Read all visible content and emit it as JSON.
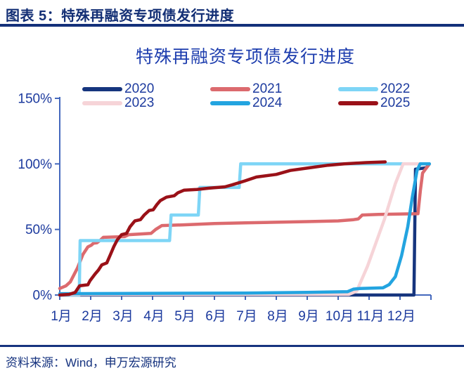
{
  "header": {
    "title": "图表 5：特殊再融资专项债发行进度"
  },
  "footer": {
    "source": "资料来源：Wind，申万宏源研究"
  },
  "chart_data": {
    "type": "line",
    "title": "特殊再融资专项债发行进度",
    "xlabel": "",
    "ylabel": "",
    "x_unit": "months (Jan 1 = 0, Dec 31 = 12)",
    "x_labels": [
      "1月",
      "2月",
      "3月",
      "4月",
      "5月",
      "6月",
      "7月",
      "8月",
      "9月",
      "10月",
      "11月",
      "12月"
    ],
    "y_ticks": [
      {
        "value": 0,
        "label": "0%"
      },
      {
        "value": 50,
        "label": "50%"
      },
      {
        "value": 100,
        "label": "100%"
      },
      {
        "value": 150,
        "label": "150%"
      }
    ],
    "ylim": [
      0,
      150
    ],
    "xlim": [
      0,
      12
    ],
    "grid": false,
    "legend_position": "top",
    "axis_color": "#4468bd",
    "text_color": "#1c3a9e",
    "series": [
      {
        "name": "2020",
        "color": "#16357e",
        "points": [
          [
            0,
            0
          ],
          [
            11.45,
            0
          ],
          [
            11.5,
            96
          ],
          [
            11.85,
            97
          ],
          [
            11.95,
            100
          ]
        ]
      },
      {
        "name": "2021",
        "color": "#dc6a6e",
        "points": [
          [
            0,
            5
          ],
          [
            0.2,
            7
          ],
          [
            0.34,
            10
          ],
          [
            0.57,
            20.5
          ],
          [
            0.75,
            31
          ],
          [
            0.91,
            36.7
          ],
          [
            1.02,
            38
          ],
          [
            1.09,
            39.5
          ],
          [
            1.2,
            39.8
          ],
          [
            1.32,
            42
          ],
          [
            1.41,
            44
          ],
          [
            2.1,
            44.5
          ],
          [
            2.23,
            46
          ],
          [
            2.95,
            47
          ],
          [
            3.1,
            50
          ],
          [
            3.3,
            53
          ],
          [
            4,
            53.5
          ],
          [
            5,
            54.5
          ],
          [
            6,
            55
          ],
          [
            7,
            55.5
          ],
          [
            8,
            56
          ],
          [
            9,
            56.5
          ],
          [
            9.5,
            57.5
          ],
          [
            9.65,
            58
          ],
          [
            9.78,
            61
          ],
          [
            10.3,
            61.5
          ],
          [
            11.58,
            62
          ],
          [
            11.66,
            80
          ],
          [
            11.73,
            93
          ],
          [
            11.95,
            100
          ]
        ]
      },
      {
        "name": "2022",
        "color": "#7ed5f6",
        "points": [
          [
            0,
            0
          ],
          [
            0.63,
            0
          ],
          [
            0.66,
            41.5
          ],
          [
            3.55,
            41.5
          ],
          [
            3.6,
            61
          ],
          [
            4.48,
            61
          ],
          [
            4.53,
            82
          ],
          [
            5.8,
            82
          ],
          [
            5.85,
            100
          ],
          [
            11.95,
            100
          ]
        ]
      },
      {
        "name": "2023",
        "color": "#f6d4d8",
        "points": [
          [
            0,
            0.5
          ],
          [
            9.35,
            0.5
          ],
          [
            9.6,
            3
          ],
          [
            9.95,
            22
          ],
          [
            10.5,
            58
          ],
          [
            10.85,
            85
          ],
          [
            11.1,
            100
          ],
          [
            11.95,
            100
          ]
        ]
      },
      {
        "name": "2024",
        "color": "#23a4e0",
        "points": [
          [
            0,
            1
          ],
          [
            6,
            1.5
          ],
          [
            8,
            2
          ],
          [
            9.3,
            2.5
          ],
          [
            9.5,
            4.5
          ],
          [
            9.7,
            5
          ],
          [
            10.45,
            5.5
          ],
          [
            10.65,
            8
          ],
          [
            10.85,
            14
          ],
          [
            11.05,
            30
          ],
          [
            11.25,
            52
          ],
          [
            11.4,
            75
          ],
          [
            11.55,
            95
          ],
          [
            11.65,
            100
          ],
          [
            11.95,
            100
          ]
        ]
      },
      {
        "name": "2025",
        "color": "#9a1118",
        "points": [
          [
            0,
            0
          ],
          [
            0.3,
            0.5
          ],
          [
            0.5,
            2
          ],
          [
            0.64,
            7
          ],
          [
            0.91,
            7.8
          ],
          [
            0.98,
            11
          ],
          [
            1.14,
            16
          ],
          [
            1.25,
            19
          ],
          [
            1.36,
            23
          ],
          [
            1.52,
            24.5
          ],
          [
            1.64,
            31
          ],
          [
            1.75,
            37
          ],
          [
            1.86,
            42
          ],
          [
            2,
            46
          ],
          [
            2.16,
            47
          ],
          [
            2.27,
            52
          ],
          [
            2.39,
            55.5
          ],
          [
            2.43,
            56.5
          ],
          [
            2.61,
            57.5
          ],
          [
            2.73,
            61
          ],
          [
            2.89,
            64.5
          ],
          [
            3.02,
            65
          ],
          [
            3.14,
            69
          ],
          [
            3.25,
            72
          ],
          [
            3.45,
            74.6
          ],
          [
            3.7,
            75.7
          ],
          [
            3.82,
            78
          ],
          [
            4.02,
            80
          ],
          [
            4.43,
            80.5
          ],
          [
            4.82,
            81.5
          ],
          [
            5.34,
            82.5
          ],
          [
            5.57,
            84
          ],
          [
            5.98,
            87
          ],
          [
            6.36,
            90
          ],
          [
            7,
            92
          ],
          [
            7.45,
            95
          ],
          [
            8.07,
            97
          ],
          [
            8.68,
            99
          ],
          [
            9.2,
            100
          ],
          [
            9.9,
            101
          ],
          [
            10.52,
            101.5
          ]
        ]
      }
    ]
  }
}
